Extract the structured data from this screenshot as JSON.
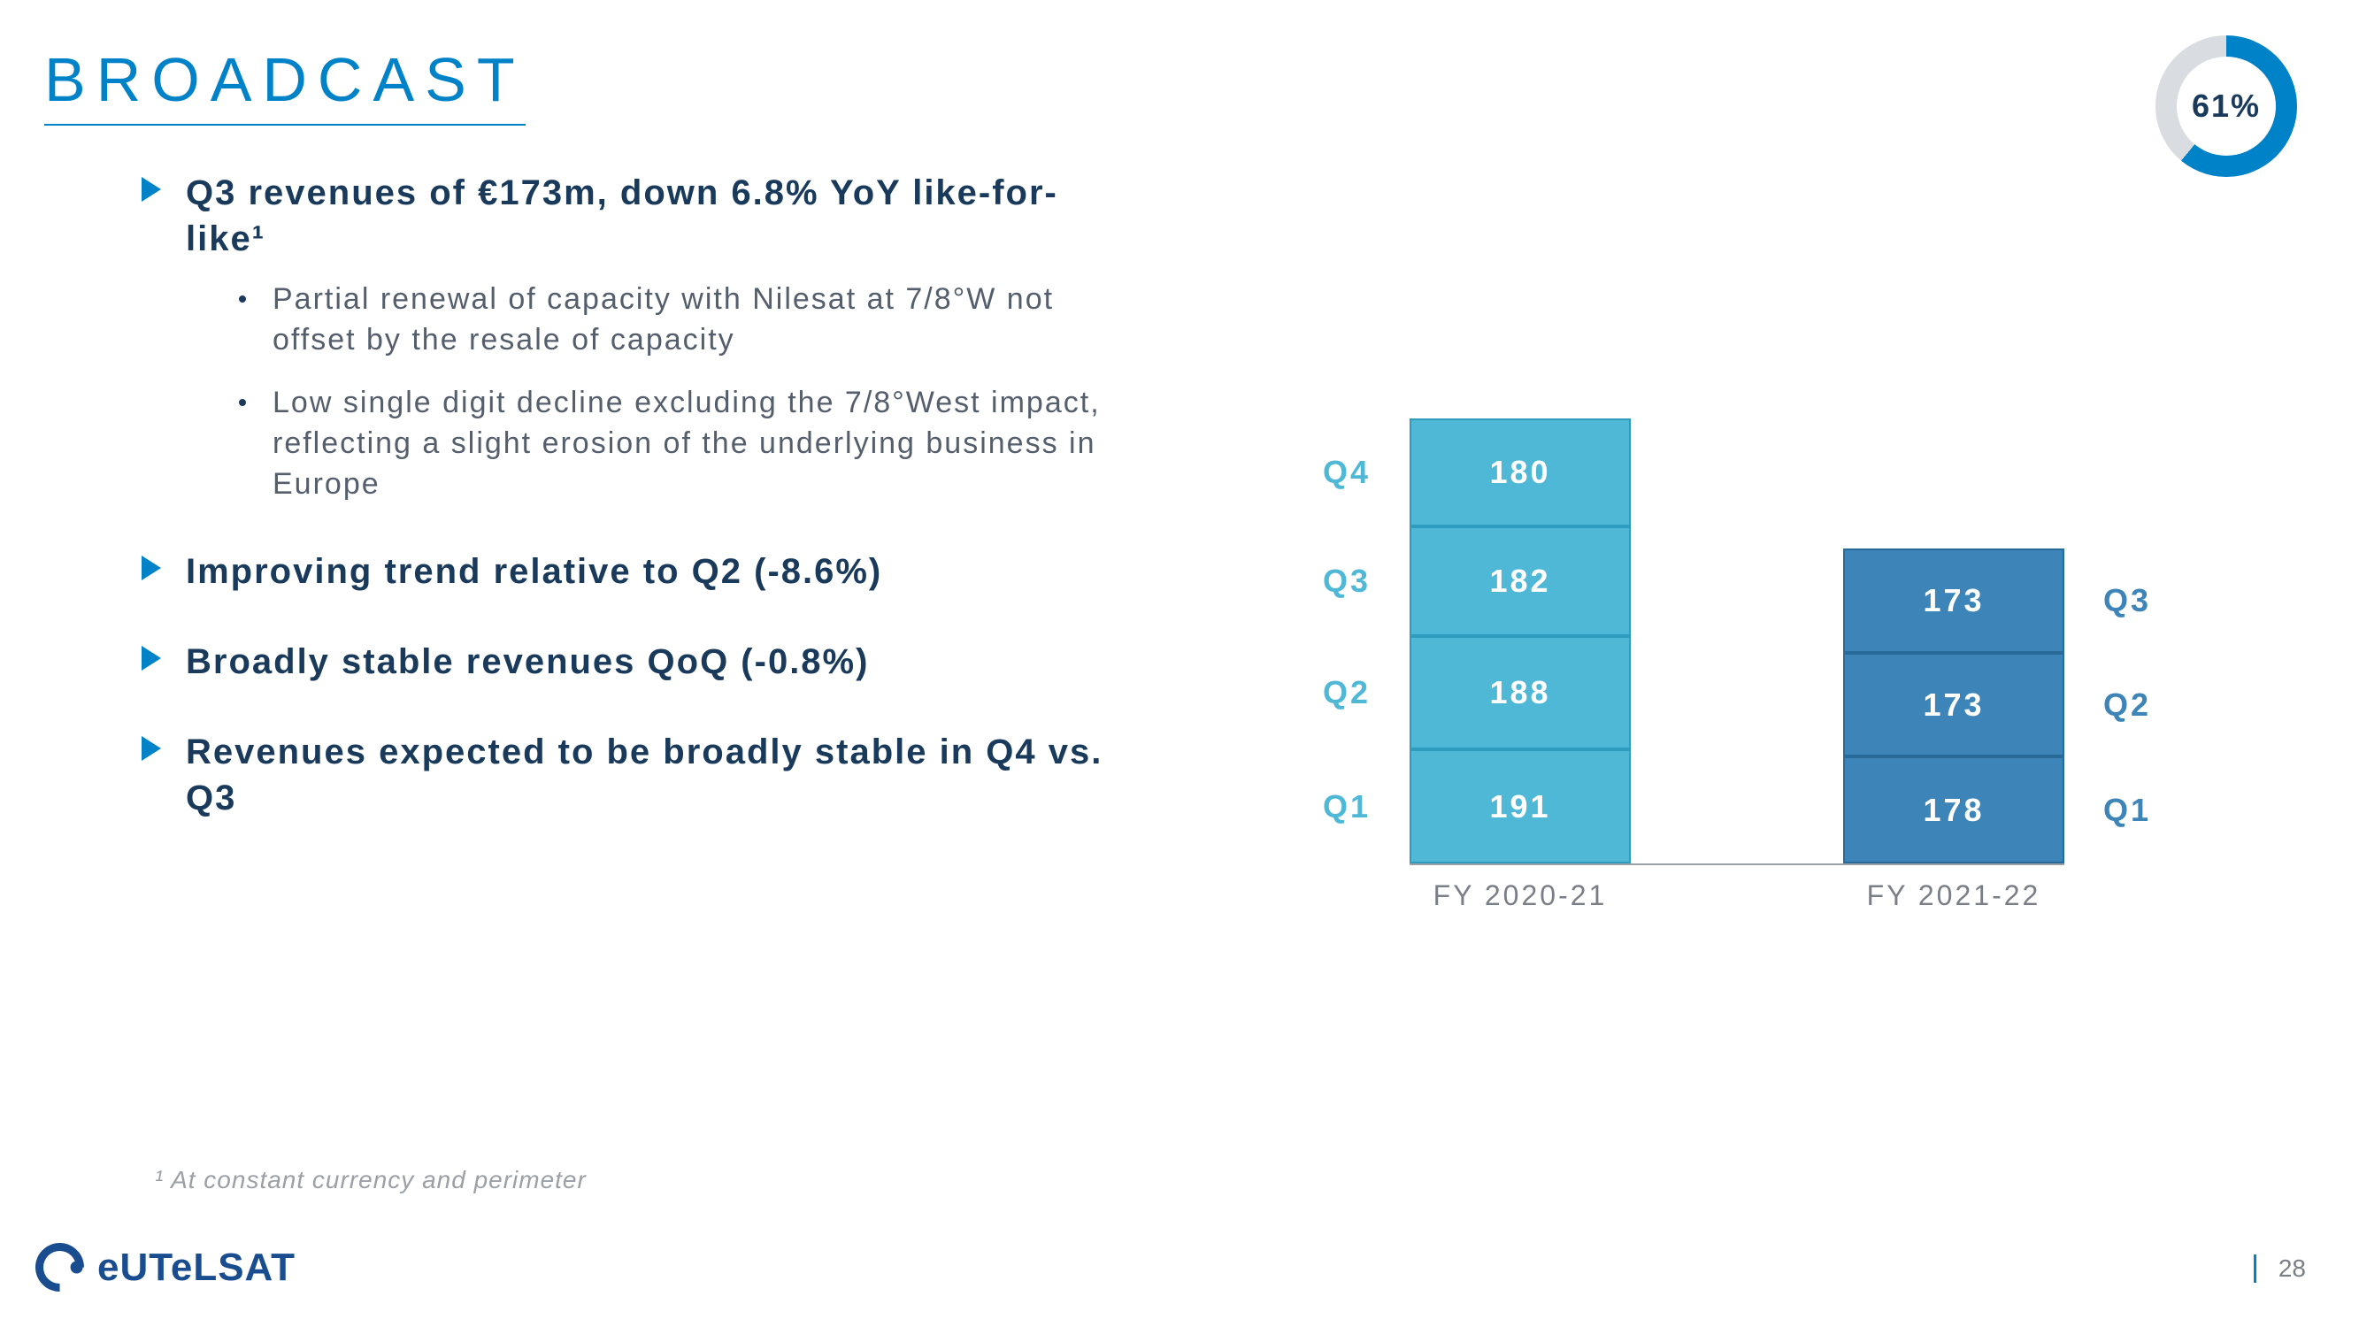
{
  "title": "BROADCAST",
  "donut": {
    "percent": 61,
    "label": "61%",
    "fg": "#0082c8",
    "bg": "#d9dde1"
  },
  "bullets": [
    {
      "text": "Q3 revenues of €173m, down 6.8% YoY like-for-like¹",
      "subs": [
        "Partial renewal of capacity with Nilesat at 7/8°W not offset by the resale of capacity",
        "Low single digit decline excluding the 7/8°West impact, reflecting a slight erosion of the underlying business in Europe"
      ]
    },
    {
      "text": "Improving trend relative to Q2 (-8.6%)",
      "subs": []
    },
    {
      "text": "Broadly stable revenues QoQ (-0.8%)",
      "subs": []
    },
    {
      "text": "Revenues expected to be broadly stable in Q4 vs. Q3",
      "subs": []
    }
  ],
  "chart": {
    "scale": 0.68,
    "label_offset": 100,
    "bars": [
      {
        "axis": "FY 2020-21",
        "fill": "#4fb8d6",
        "border": "#2d9cbf",
        "label_color": "#4fb8d6",
        "label_side": "left",
        "segs": [
          {
            "q": "Q1",
            "v": 191
          },
          {
            "q": "Q2",
            "v": 188
          },
          {
            "q": "Q3",
            "v": 182
          },
          {
            "q": "Q4",
            "v": 180
          }
        ]
      },
      {
        "axis": "FY 2021-22",
        "fill": "#3d85b8",
        "border": "#2a6a99",
        "label_color": "#3d85b8",
        "label_side": "right",
        "segs": [
          {
            "q": "Q1",
            "v": 178
          },
          {
            "q": "Q2",
            "v": 173
          },
          {
            "q": "Q3",
            "v": 173
          }
        ]
      }
    ]
  },
  "footnote": "¹ At constant currency and perimeter",
  "logo_text": "eUTeLSAT",
  "page": "28"
}
